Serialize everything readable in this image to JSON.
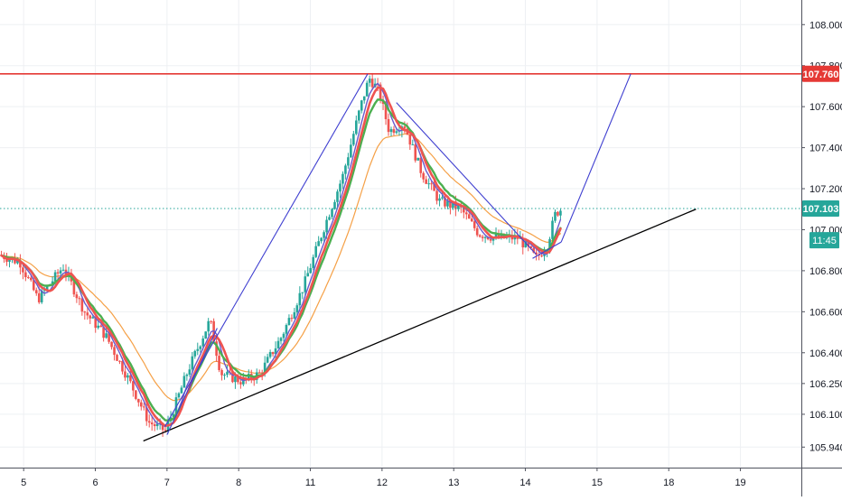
{
  "chart_data": {
    "type": "candlestick",
    "title": "",
    "xlabel": "",
    "ylabel": "",
    "ylim": [
      105.84,
      108.12
    ],
    "grid": true,
    "y_axis_position": "right",
    "y_ticks": [
      {
        "value": 108.0,
        "label": "108.000"
      },
      {
        "value": 107.8,
        "label": "107.800"
      },
      {
        "value": 107.6,
        "label": "107.600"
      },
      {
        "value": 107.4,
        "label": "107.400"
      },
      {
        "value": 107.2,
        "label": "107.200"
      },
      {
        "value": 107.0,
        "label": "107.000"
      },
      {
        "value": 106.8,
        "label": "106.800"
      },
      {
        "value": 106.6,
        "label": "106.600"
      },
      {
        "value": 106.4,
        "label": "106.400"
      },
      {
        "value": 106.25,
        "label": "106.250"
      },
      {
        "value": 106.1,
        "label": "106.100"
      },
      {
        "value": 105.94,
        "label": "105.940"
      }
    ],
    "x_ticks": [
      {
        "value": 0.0,
        "label": "5"
      },
      {
        "value": 1.0,
        "label": "6"
      },
      {
        "value": 2.0,
        "label": "7"
      },
      {
        "value": 3.0,
        "label": "8"
      },
      {
        "value": 4.0,
        "label": "11"
      },
      {
        "value": 5.0,
        "label": "12"
      },
      {
        "value": 6.0,
        "label": "13"
      },
      {
        "value": 7.0,
        "label": "14"
      },
      {
        "value": 8.0,
        "label": "15"
      },
      {
        "value": 9.0,
        "label": "18"
      },
      {
        "value": 10.0,
        "label": "19"
      }
    ],
    "xlim": [
      -0.33,
      10.85
    ],
    "colors": {
      "up": "#26a69a",
      "down": "#ef5350",
      "red_ma": "#ef5350",
      "green_ma": "#4caf50",
      "purple_ma": "#6a5acd",
      "orange_ma": "#f5a046",
      "resistance": "#e53935",
      "trendline": "#000000",
      "pattern": "#3f3fd0",
      "current_price": "#26a69a",
      "grid": "#eef0f3"
    },
    "resistance_level": 107.76,
    "resistance_label": "107.760",
    "current_price": 107.103,
    "current_price_label": "107.103",
    "countdown_label": "11:45",
    "countdown_price": 107.01,
    "trendline": [
      [
        1.67,
        105.97
      ],
      [
        9.38,
        107.1
      ]
    ],
    "pattern_lines": [
      [
        [
          1.97,
          106.04
        ],
        [
          4.8,
          107.76
        ]
      ],
      [
        [
          2.0,
          106.0
        ],
        [
          2.7,
          106.52
        ]
      ],
      [
        [
          5.2,
          107.62
        ],
        [
          7.15,
          106.88
        ]
      ],
      [
        [
          7.1,
          106.86
        ],
        [
          7.5,
          106.94
        ]
      ],
      [
        [
          7.5,
          106.94
        ],
        [
          8.47,
          107.76
        ]
      ]
    ],
    "ohlc_anchors": [
      [
        -0.35,
        106.88
      ],
      [
        -0.05,
        106.84
      ],
      [
        0.2,
        106.66
      ],
      [
        0.55,
        106.82
      ],
      [
        0.85,
        106.6
      ],
      [
        1.15,
        106.48
      ],
      [
        1.45,
        106.28
      ],
      [
        1.75,
        106.06
      ],
      [
        1.98,
        106.02
      ],
      [
        2.3,
        106.32
      ],
      [
        2.6,
        106.56
      ],
      [
        2.75,
        106.3
      ],
      [
        3.05,
        106.26
      ],
      [
        3.3,
        106.3
      ],
      [
        3.6,
        106.48
      ],
      [
        3.9,
        106.72
      ],
      [
        4.2,
        107.02
      ],
      [
        4.45,
        107.26
      ],
      [
        4.7,
        107.6
      ],
      [
        4.82,
        107.74
      ],
      [
        4.95,
        107.68
      ],
      [
        5.1,
        107.48
      ],
      [
        5.3,
        107.52
      ],
      [
        5.55,
        107.28
      ],
      [
        5.8,
        107.14
      ],
      [
        6.1,
        107.1
      ],
      [
        6.35,
        106.98
      ],
      [
        6.6,
        106.96
      ],
      [
        6.9,
        106.96
      ],
      [
        7.15,
        106.86
      ],
      [
        7.3,
        106.92
      ],
      [
        7.42,
        107.08
      ],
      [
        7.5,
        107.1
      ]
    ]
  }
}
